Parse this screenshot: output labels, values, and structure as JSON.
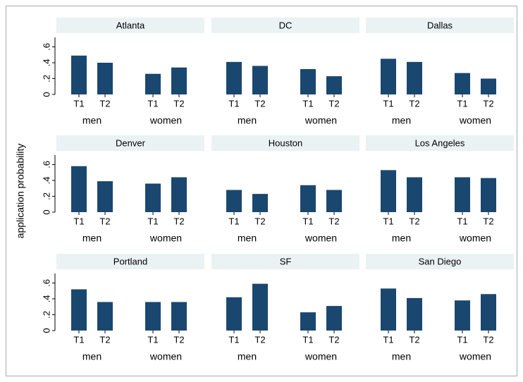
{
  "y_label": "application probability",
  "ylim": [
    0,
    0.72
  ],
  "yticks": [
    0,
    {
      "value": 0.2,
      "label": ".2"
    },
    {
      "value": 0.4,
      "label": ".4"
    },
    {
      "value": 0.6,
      "label": ".6"
    }
  ],
  "chart_data": [
    {
      "type": "bar",
      "title": "Atlanta",
      "groups": [
        "men",
        "women"
      ],
      "categories": [
        "T1",
        "T2",
        "T1",
        "T2"
      ],
      "values": [
        0.49,
        0.4,
        0.26,
        0.34
      ],
      "color": "#1a476f"
    },
    {
      "type": "bar",
      "title": "DC",
      "groups": [
        "men",
        "women"
      ],
      "categories": [
        "T1",
        "T2",
        "T1",
        "T2"
      ],
      "values": [
        0.41,
        0.36,
        0.32,
        0.23
      ],
      "color": "#1a476f"
    },
    {
      "type": "bar",
      "title": "Dallas",
      "groups": [
        "men",
        "women"
      ],
      "categories": [
        "T1",
        "T2",
        "T1",
        "T2"
      ],
      "values": [
        0.45,
        0.41,
        0.27,
        0.2
      ],
      "color": "#1a476f"
    },
    {
      "type": "bar",
      "title": "Denver",
      "groups": [
        "men",
        "women"
      ],
      "categories": [
        "T1",
        "T2",
        "T1",
        "T2"
      ],
      "values": [
        0.58,
        0.39,
        0.36,
        0.44
      ],
      "color": "#1a476f"
    },
    {
      "type": "bar",
      "title": "Houston",
      "groups": [
        "men",
        "women"
      ],
      "categories": [
        "T1",
        "T2",
        "T1",
        "T2"
      ],
      "values": [
        0.28,
        0.23,
        0.34,
        0.28
      ],
      "color": "#1a476f"
    },
    {
      "type": "bar",
      "title": "Los Angeles",
      "groups": [
        "men",
        "women"
      ],
      "categories": [
        "T1",
        "T2",
        "T1",
        "T2"
      ],
      "values": [
        0.53,
        0.44,
        0.44,
        0.43
      ],
      "color": "#1a476f"
    },
    {
      "type": "bar",
      "title": "Portland",
      "groups": [
        "men",
        "women"
      ],
      "categories": [
        "T1",
        "T2",
        "T1",
        "T2"
      ],
      "values": [
        0.52,
        0.36,
        0.36,
        0.36
      ],
      "color": "#1a476f"
    },
    {
      "type": "bar",
      "title": "SF",
      "groups": [
        "men",
        "women"
      ],
      "categories": [
        "T1",
        "T2",
        "T1",
        "T2"
      ],
      "values": [
        0.42,
        0.59,
        0.23,
        0.31
      ],
      "color": "#1a476f"
    },
    {
      "type": "bar",
      "title": "San Diego",
      "groups": [
        "men",
        "women"
      ],
      "categories": [
        "T1",
        "T2",
        "T1",
        "T2"
      ],
      "values": [
        0.53,
        0.41,
        0.38,
        0.46
      ],
      "color": "#1a476f"
    }
  ]
}
